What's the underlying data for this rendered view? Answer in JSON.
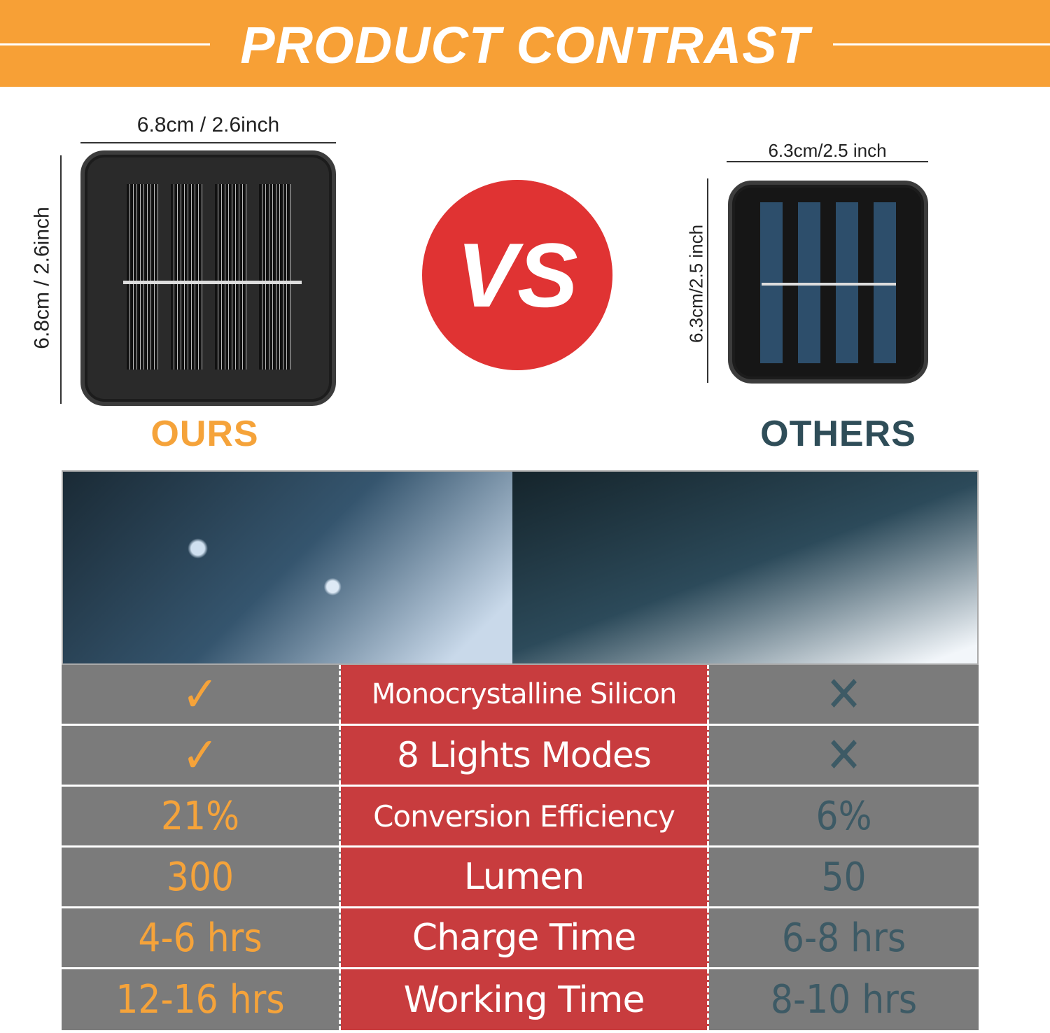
{
  "header": {
    "title": "PRODUCT CONTRAST"
  },
  "ours": {
    "width_label": "6.8cm / 2.6inch",
    "height_label": "6.8cm / 2.6inch",
    "label": "OURS"
  },
  "others": {
    "width_label": "6.3cm/2.5 inch",
    "height_label": "6.3cm/2.5 inch",
    "label": "OTHERS"
  },
  "vs": "VS",
  "colors": {
    "orange": "#f7a036",
    "red": "#c83c3e",
    "gray": "#7b7b7b",
    "teal": "#3d5a65"
  },
  "table": {
    "rows": [
      {
        "ours": "✓",
        "feature": "Monocrystalline Silicon",
        "others": "✕",
        "ours_icon": "check-icon",
        "others_icon": "cross-icon"
      },
      {
        "ours": "✓",
        "feature": "8 Lights Modes",
        "others": "✕",
        "ours_icon": "check-icon",
        "others_icon": "cross-icon"
      },
      {
        "ours": "21%",
        "feature": "Conversion Efficiency",
        "others": "6%"
      },
      {
        "ours": "300",
        "feature": "Lumen",
        "others": "50"
      },
      {
        "ours": "4-6 hrs",
        "feature": "Charge Time",
        "others": "6-8 hrs"
      },
      {
        "ours": "12-16 hrs",
        "feature": "Working Time",
        "others": "8-10 hrs"
      }
    ]
  }
}
